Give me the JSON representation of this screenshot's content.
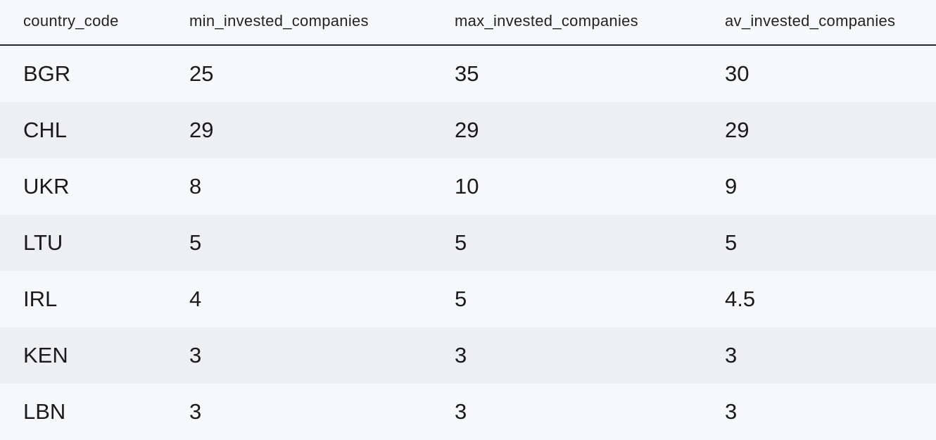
{
  "table": {
    "columns": [
      "country_code",
      "min_invested_companies",
      "max_invested_companies",
      "av_invested_companies"
    ],
    "rows": [
      [
        "BGR",
        "25",
        "35",
        "30"
      ],
      [
        "CHL",
        "29",
        "29",
        "29"
      ],
      [
        "UKR",
        "8",
        "10",
        "9"
      ],
      [
        "LTU",
        "5",
        "5",
        "5"
      ],
      [
        "IRL",
        "4",
        "5",
        "4.5"
      ],
      [
        "KEN",
        "3",
        "3",
        "3"
      ],
      [
        "LBN",
        "3",
        "3",
        "3"
      ]
    ]
  }
}
